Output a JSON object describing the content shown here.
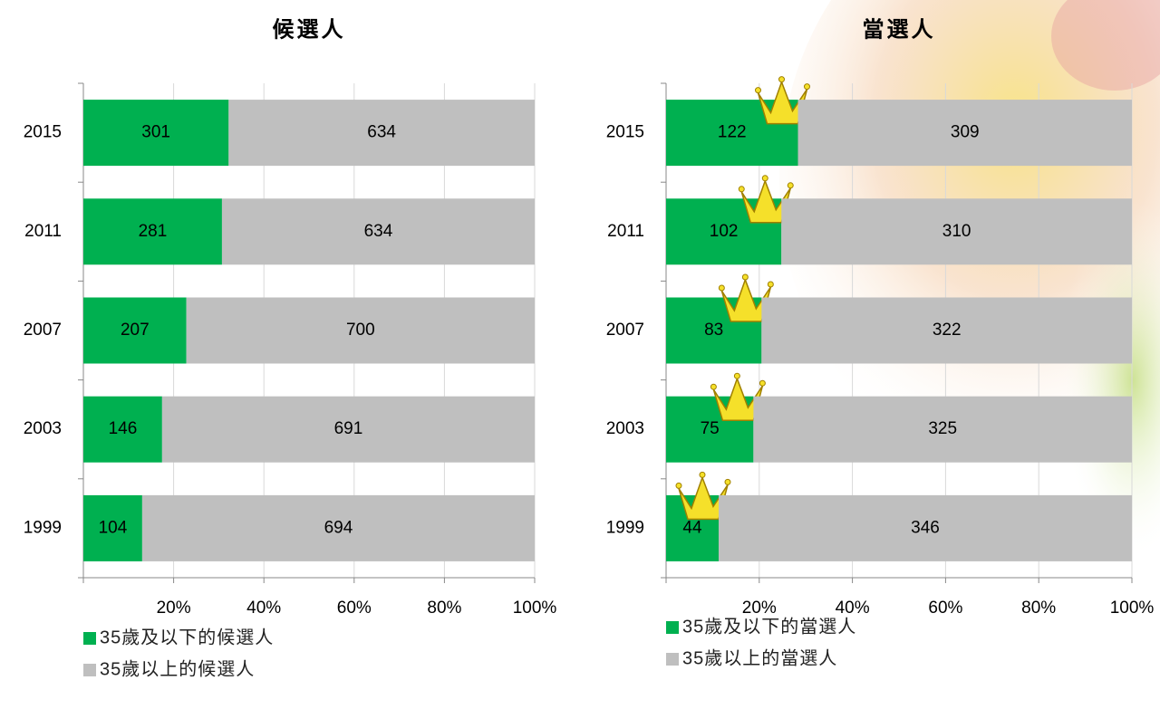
{
  "chart_data": [
    {
      "type": "bar",
      "orientation": "horizontal",
      "stacking": "percent",
      "title": "候選人",
      "categories": [
        "2015",
        "2011",
        "2007",
        "2003",
        "1999"
      ],
      "series": [
        {
          "name": "35歲及以下的候選人",
          "color": "#00b050",
          "values": [
            301,
            281,
            207,
            146,
            104
          ]
        },
        {
          "name": "35歲以上的候選人",
          "color": "#bfbfbf",
          "values": [
            634,
            634,
            700,
            691,
            694
          ]
        }
      ],
      "xlim": [
        0,
        100
      ],
      "xticks": [
        {
          "value": 20,
          "label": "20%"
        },
        {
          "value": 40,
          "label": "40%"
        },
        {
          "value": 60,
          "label": "60%"
        },
        {
          "value": 80,
          "label": "80%"
        },
        {
          "value": 100,
          "label": "100%"
        }
      ],
      "grid": true,
      "legend": "bottom-left"
    },
    {
      "type": "bar",
      "orientation": "horizontal",
      "stacking": "percent",
      "title": "當選人",
      "categories": [
        "2015",
        "2011",
        "2007",
        "2003",
        "1999"
      ],
      "series": [
        {
          "name": "35歲及以下的當選人",
          "color": "#00b050",
          "values": [
            122,
            102,
            83,
            75,
            44
          ]
        },
        {
          "name": "35歲以上的當選人",
          "color": "#bfbfbf",
          "values": [
            309,
            310,
            322,
            325,
            346
          ]
        }
      ],
      "xlim": [
        0,
        100
      ],
      "xticks": [
        {
          "value": 20,
          "label": "20%"
        },
        {
          "value": 40,
          "label": "40%"
        },
        {
          "value": 60,
          "label": "60%"
        },
        {
          "value": 80,
          "label": "80%"
        },
        {
          "value": 100,
          "label": "100%"
        }
      ],
      "grid": true,
      "legend": "bottom-left"
    }
  ]
}
